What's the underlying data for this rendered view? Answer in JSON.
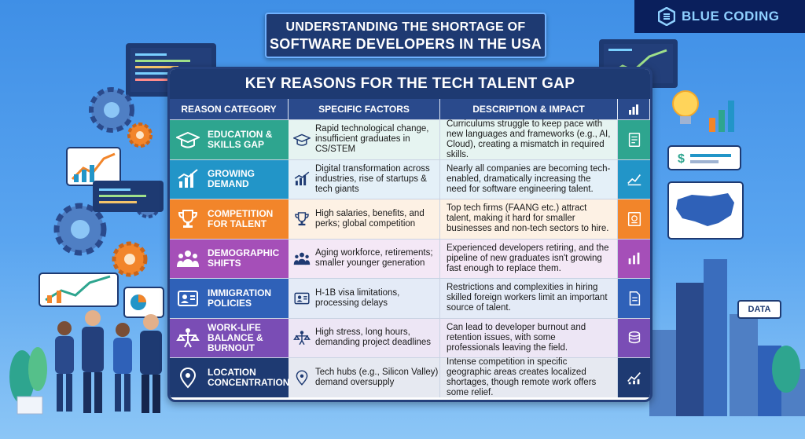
{
  "title": {
    "line1": "UNDERSTANDING THE SHORTAGE OF",
    "line2": "SOFTWARE DEVELOPERS IN THE USA"
  },
  "logo": {
    "text": "BLUE CODING",
    "icon": "hexagon-logo-icon"
  },
  "card": {
    "heading": "KEY REASONS FOR THE TECH TALENT GAP",
    "columns": [
      "REASON CATEGORY",
      "SPECIFIC FACTORS",
      "DESCRIPTION & IMPACT"
    ],
    "header_icon": "bar-chart-icon",
    "rows": [
      {
        "category": "EDUCATION & SKILLS GAP",
        "factor": "Rapid technological change, insufficient graduates in CS/STEM",
        "description": "Curriculums struggle to keep pace with new languages and frameworks (e.g., AI, Cloud), creating a mismatch in required skills.",
        "color": "#2ea58f",
        "tint": "#e6f4f1",
        "icon": "graduation-cap-icon",
        "side_icon": "checklist-icon"
      },
      {
        "category": "GROWING DEMAND",
        "factor": "Digital transformation across industries, rise of startups & tech giants",
        "description": "Nearly all companies are becoming tech-enabled, dramatically increasing the need for software engineering talent.",
        "color": "#2295c8",
        "tint": "#e4f0f8",
        "icon": "growth-chart-icon",
        "side_icon": "trend-chart-icon"
      },
      {
        "category": "COMPETITION FOR TALENT",
        "factor": "High salaries, benefits, and perks; global competition",
        "description": "Top tech firms (FAANG etc.) attract talent, making it hard for smaller businesses and non-tech sectors to hire.",
        "color": "#f2852a",
        "tint": "#fdf1e4",
        "icon": "trophy-icon",
        "side_icon": "certificate-icon"
      },
      {
        "category": "DEMOGRAPHIC SHIFTS",
        "factor": "Aging workforce, retirements; smaller younger generation",
        "description": "Experienced developers retiring, and the pipeline of new graduates isn't growing fast enough to replace them.",
        "color": "#a54fb8",
        "tint": "#f4e8f6",
        "icon": "people-group-icon",
        "side_icon": "bar-chart-icon"
      },
      {
        "category": "IMMIGRATION POLICIES",
        "factor": "H-1B visa limitations, processing delays",
        "description": "Restrictions and complexities in hiring skilled foreign workers limit an important source of talent.",
        "color": "#2f61b8",
        "tint": "#e4ebf7",
        "icon": "id-card-icon",
        "side_icon": "document-icon"
      },
      {
        "category": "WORK-LIFE BALANCE & BURNOUT",
        "factor": "High stress, long hours, demanding project deadlines",
        "description": "Can lead to developer burnout and retention issues, with some professionals leaving the field.",
        "color": "#7a4db5",
        "tint": "#ede6f5",
        "icon": "person-balance-icon",
        "side_icon": "coins-icon"
      },
      {
        "category": "LOCATION CONCENTRATION",
        "factor": "Tech hubs (e.g., Silicon Valley) demand oversupply",
        "description": "Intense competition in specific geographic areas creates localized shortages, though remote work offers some relief.",
        "color": "#1e3a72",
        "tint": "#e6e9f1",
        "icon": "location-pin-icon",
        "side_icon": "line-chart-icon"
      }
    ]
  },
  "decor": {
    "data_label": "DATA"
  }
}
